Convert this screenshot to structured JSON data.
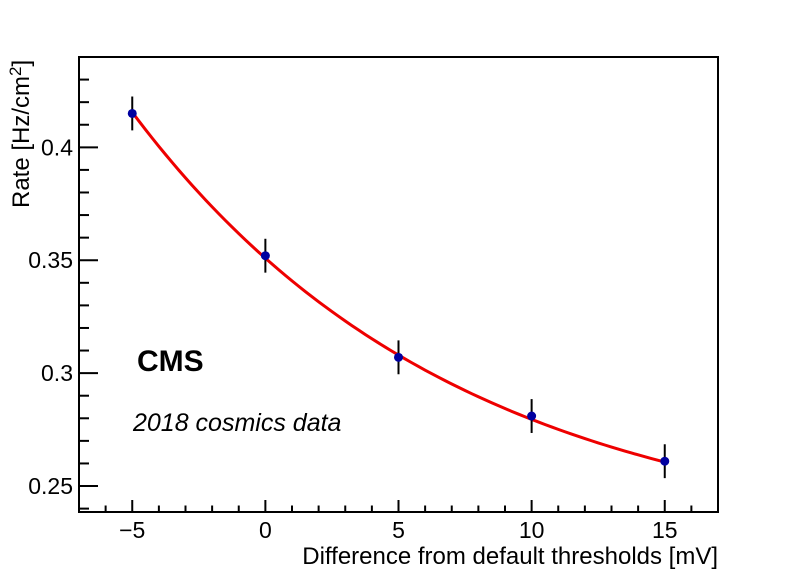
{
  "labels": {
    "cms": "CMS",
    "cosmics": "2018 cosmics data"
  },
  "chart_data": {
    "type": "scatter",
    "title": "",
    "xlabel": "Difference from default thresholds [mV]",
    "ylabel": "Rate [Hz/cm^2]",
    "ylabel_parts": {
      "prefix": "Rate [Hz/cm",
      "sup": "2",
      "suffix": "]"
    },
    "xlim": [
      -7,
      17
    ],
    "ylim": [
      0.2385,
      0.44
    ],
    "grid": false,
    "legend": "none",
    "x_major_ticks": [
      -5,
      0,
      5,
      10,
      15
    ],
    "x_tick_labels": [
      "−5",
      "0",
      "5",
      "10",
      "15"
    ],
    "x_minor_step": 1,
    "y_major_ticks": [
      0.25,
      0.3,
      0.35,
      0.4
    ],
    "y_tick_labels": [
      "0.25",
      "0.3",
      "0.35",
      "0.4"
    ],
    "y_minor_step": 0.01,
    "series": [
      {
        "name": "cosmic-rate-data",
        "type": "scatter-errorbar",
        "x": [
          -5,
          0,
          5,
          10,
          15
        ],
        "y": [
          0.415,
          0.352,
          0.307,
          0.281,
          0.261
        ],
        "yerr": [
          0.0075,
          0.0075,
          0.0075,
          0.0075,
          0.0075
        ],
        "marker": "filled-circle",
        "marker_color": "#0000a0",
        "errorbar_color": "#000000"
      },
      {
        "name": "exponential-fit",
        "type": "line",
        "color": "#ee0000",
        "fit": {
          "formula": "C + A*exp(-x/tau)",
          "C": 0.2233,
          "A": 0.1276,
          "tau": 12.2,
          "x_range": [
            -5,
            15
          ]
        }
      }
    ],
    "annotations": [
      {
        "text": "CMS",
        "style": "bold"
      },
      {
        "text": "2018 cosmics data",
        "style": "italic"
      }
    ],
    "frame_color": "#000000"
  }
}
